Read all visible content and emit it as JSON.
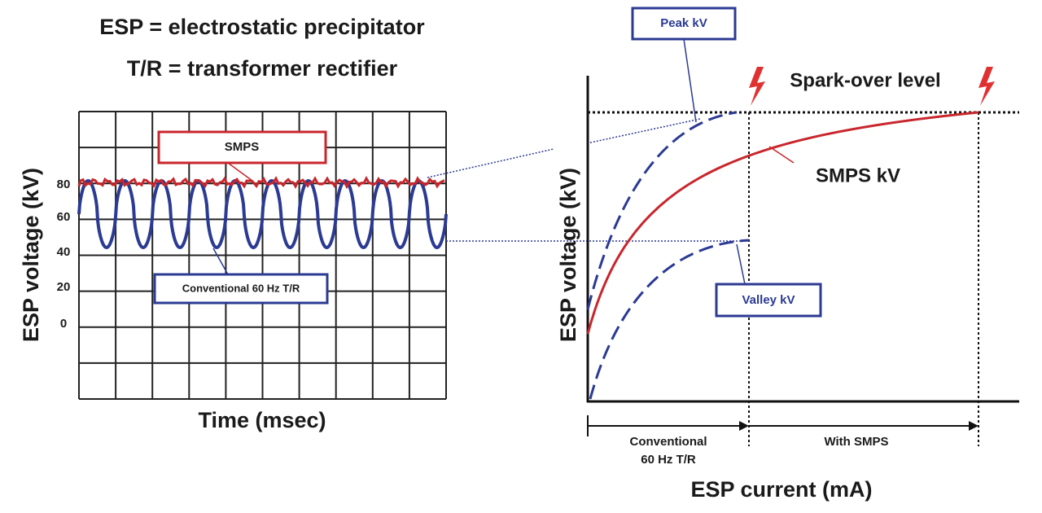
{
  "header": {
    "line1": "ESP = electrostatic precipitator",
    "line2": "T/R = transformer rectifier"
  },
  "left_panel": {
    "y_axis_label": "ESP voltage (kV)",
    "x_axis_label": "Time (msec)",
    "y_tick_labels": [
      "80",
      "60",
      "40",
      "20",
      "0"
    ],
    "smps_label": "SMPS",
    "conventional_label": "Conventional 60 Hz T/R"
  },
  "right_panel": {
    "y_axis_label": "ESP voltage (kV)",
    "x_axis_label": "ESP current (mA)",
    "peak_label": "Peak kV",
    "valley_label": "Valley kV",
    "spark_label": "Spark-over level",
    "smps_curve_label": "SMPS kV",
    "range_conventional": [
      "Conventional",
      "60 Hz T/R"
    ],
    "range_smps": "With SMPS"
  }
}
